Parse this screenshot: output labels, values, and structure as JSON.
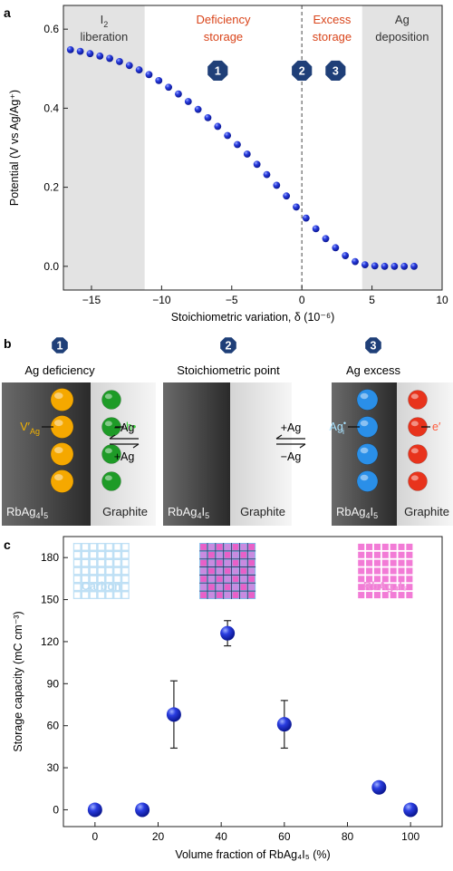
{
  "panels": {
    "a": {
      "letter": "a",
      "chart_data": {
        "type": "scatter",
        "xlabel": "Stoichiometric variation, δ (10⁻⁶)",
        "ylabel": "Potential (V vs Ag/Ag⁺)",
        "xlim": [
          -17,
          10
        ],
        "ylim": [
          -0.06,
          0.66
        ],
        "xticks": [
          -15,
          -10,
          -5,
          0,
          5,
          10
        ],
        "xtick_labels": [
          "−15",
          "−10",
          "−5",
          "0",
          "5",
          "10"
        ],
        "yticks": [
          0.0,
          0.2,
          0.4,
          0.6
        ],
        "ytick_labels": [
          "0.0",
          "0.2",
          "0.4",
          "0.6"
        ],
        "grid": false,
        "series": [
          {
            "marker_color": "#1a2fd1",
            "points": [
              [
                -16.5,
                0.548
              ],
              [
                -15.8,
                0.544
              ],
              [
                -15.1,
                0.538
              ],
              [
                -14.4,
                0.532
              ],
              [
                -13.7,
                0.526
              ],
              [
                -13.0,
                0.518
              ],
              [
                -12.3,
                0.508
              ],
              [
                -11.6,
                0.497
              ],
              [
                -10.9,
                0.485
              ],
              [
                -10.2,
                0.47
              ],
              [
                -9.5,
                0.453
              ],
              [
                -8.8,
                0.436
              ],
              [
                -8.1,
                0.417
              ],
              [
                -7.4,
                0.397
              ],
              [
                -6.7,
                0.376
              ],
              [
                -6.0,
                0.354
              ],
              [
                -5.3,
                0.331
              ],
              [
                -4.6,
                0.308
              ],
              [
                -3.9,
                0.284
              ],
              [
                -3.2,
                0.258
              ],
              [
                -2.5,
                0.232
              ],
              [
                -1.8,
                0.205
              ],
              [
                -1.1,
                0.178
              ],
              [
                -0.4,
                0.15
              ],
              [
                0.3,
                0.122
              ],
              [
                1.0,
                0.095
              ],
              [
                1.7,
                0.07
              ],
              [
                2.4,
                0.047
              ],
              [
                3.1,
                0.027
              ],
              [
                3.8,
                0.012
              ],
              [
                4.5,
                0.004
              ],
              [
                5.2,
                0.001
              ],
              [
                5.9,
                0.0
              ],
              [
                6.6,
                0.0
              ],
              [
                7.3,
                0.0
              ],
              [
                8.0,
                0.0
              ]
            ]
          }
        ],
        "regions": [
          {
            "x_from": -17,
            "x_to": -11.2,
            "shade": "#e3e3e3",
            "line1": "I",
            "line1_sub": "2",
            "line1_tail": "",
            "line2": "liberation",
            "color": "#333333"
          },
          {
            "x_from": -11.2,
            "x_to": 0,
            "shade": "#ffffff",
            "line1": "Deficiency",
            "line1_sub": "",
            "line1_tail": "",
            "line2": "storage",
            "color": "#d9441a"
          },
          {
            "x_from": 0,
            "x_to": 4.3,
            "shade": "#ffffff",
            "line1": "Excess",
            "line1_sub": "",
            "line1_tail": "",
            "line2": "storage",
            "color": "#d9441a"
          },
          {
            "x_from": 4.3,
            "x_to": 10,
            "shade": "#e3e3e3",
            "line1": "Ag",
            "line1_sub": "",
            "line1_tail": "",
            "line2": "deposition",
            "color": "#333333"
          }
        ],
        "dashed_x": 0,
        "badges": [
          {
            "x": -6.0,
            "y": 0.495,
            "label": "1"
          },
          {
            "x": 0.0,
            "y": 0.495,
            "label": "2"
          },
          {
            "x": 2.4,
            "y": 0.495,
            "label": "3"
          }
        ]
      }
    },
    "b": {
      "letter": "b",
      "states": [
        {
          "badge": "1",
          "title": "Ag deficiency",
          "material": "RbAg",
          "material_sub1": "4",
          "material_mid": "I",
          "material_sub2": "5",
          "graphite": "Graphite",
          "left_carrier": "V′",
          "left_carrier_sub": "Ag",
          "right_carrier": "h•",
          "left_color": "#f5a800",
          "right_color": "#1e9b27",
          "left_text_color": "#f5b400",
          "right_text_color": "#3fcf3f"
        },
        {
          "badge": "2",
          "title": "Stoichiometric point",
          "material": "RbAg",
          "material_sub1": "4",
          "material_mid": "I",
          "material_sub2": "5",
          "graphite": "Graphite"
        },
        {
          "badge": "3",
          "title": "Ag excess",
          "material": "RbAg",
          "material_sub1": "4",
          "material_mid": "I",
          "material_sub2": "5",
          "graphite": "Graphite",
          "left_carrier": "Ag",
          "left_carrier_sub": "i",
          "left_carrier_sup": "•",
          "right_carrier": "e′",
          "left_color": "#2a8fe8",
          "right_color": "#e8331c",
          "left_text_color": "#a9e3ff",
          "right_text_color": "#ff5a3a"
        }
      ],
      "arrows": [
        {
          "top": "−Ag",
          "bottom": "+Ag"
        },
        {
          "top": "+Ag",
          "bottom": "−Ag"
        }
      ]
    },
    "c": {
      "letter": "c",
      "chart_data": {
        "type": "scatter",
        "xlabel": "Volume fraction of RbAg₄I₅ (%)",
        "ylabel": "Storage capacity (mC cm⁻³)",
        "xlim": [
          -10,
          110
        ],
        "ylim": [
          -12,
          195
        ],
        "xticks": [
          0,
          20,
          40,
          60,
          80,
          100
        ],
        "xtick_labels": [
          "0",
          "20",
          "40",
          "60",
          "80",
          "100"
        ],
        "yticks": [
          0,
          30,
          60,
          90,
          120,
          150,
          180
        ],
        "ytick_labels": [
          "0",
          "30",
          "60",
          "90",
          "120",
          "150",
          "180"
        ],
        "grid": false,
        "series": [
          {
            "marker_color": "#1a2fd1",
            "x": [
              0,
              15,
              25,
              42,
              60,
              90,
              100
            ],
            "y": [
              0,
              0,
              68,
              126,
              61,
              16,
              0
            ],
            "err_low": [
              0,
              0,
              24,
              9,
              17,
              0,
              0
            ],
            "err_high": [
              0,
              0,
              24,
              9,
              17,
              0,
              0
            ]
          }
        ],
        "insets": [
          {
            "label": "Carbon",
            "x": 2,
            "kind": "carbon",
            "label_color": "#b8dcf3"
          },
          {
            "label": "",
            "x": 42,
            "kind": "mixed",
            "label_color": ""
          },
          {
            "label": "RbAg₄I₅",
            "x": 92,
            "kind": "rbag",
            "label_color": "#f08ed8"
          }
        ]
      }
    }
  }
}
